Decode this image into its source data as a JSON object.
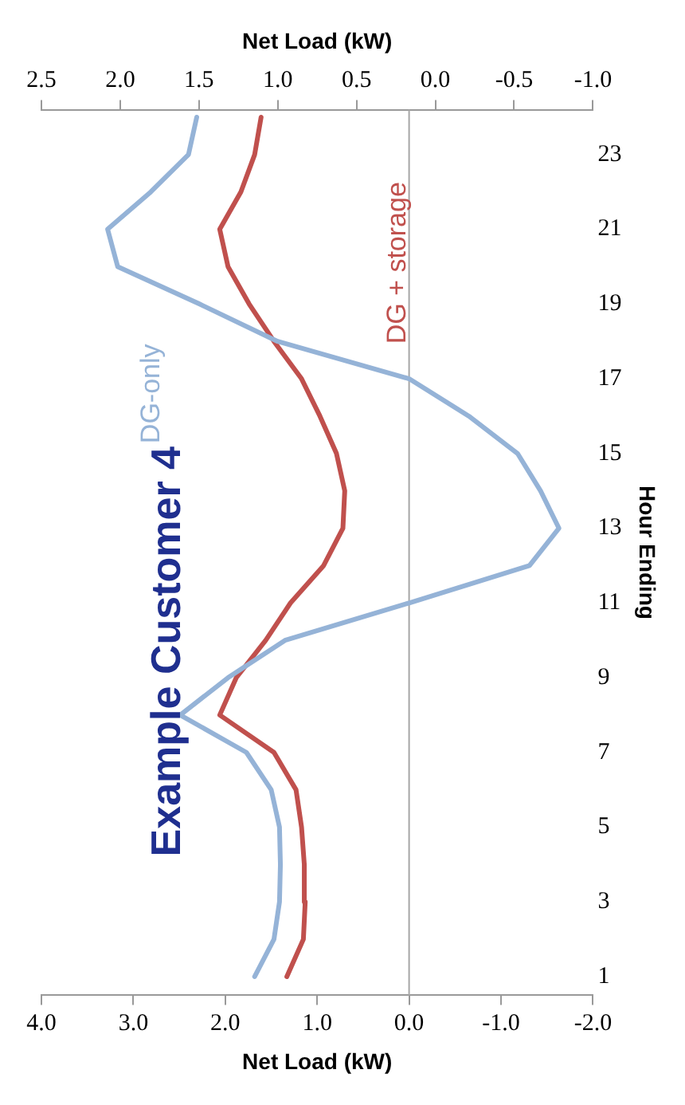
{
  "chart_data": {
    "type": "line",
    "title": "Example Customer 4",
    "ylabel": "Hour Ending",
    "xlabel": "Net Load (kW)",
    "x2label": "Net Load (kW)",
    "series": [
      {
        "name": "DG-only",
        "color": "#95b3d7",
        "x": [
          1.68,
          1.47,
          1.41,
          1.4,
          1.41,
          1.5,
          1.77,
          2.49,
          1.97,
          1.35,
          0.0,
          -1.31,
          -1.63,
          -1.43,
          -1.18,
          -0.65,
          0.0,
          1.43,
          2.28,
          3.17,
          3.28,
          2.81,
          2.4,
          2.31
        ],
        "values": [
          1,
          2,
          3,
          4,
          5,
          6,
          7,
          8,
          9,
          10,
          11,
          12,
          13,
          14,
          15,
          16,
          17,
          18,
          19,
          20,
          21,
          22,
          23,
          24
        ]
      },
      {
        "name": "DG + storage",
        "color": "#c0504d",
        "x": [
          1.33,
          1.15,
          1.13,
          1.14,
          1.17,
          1.23,
          1.47,
          2.06,
          1.88,
          1.56,
          1.29,
          0.93,
          0.72,
          0.7,
          0.79,
          0.97,
          1.17,
          1.47,
          1.74,
          1.97,
          2.06,
          1.83,
          1.68,
          1.61
        ],
        "values": [
          1,
          2,
          3,
          4,
          5,
          6,
          7,
          8,
          9,
          10,
          11,
          12,
          13,
          14,
          15,
          16,
          17,
          18,
          19,
          20,
          21,
          22,
          23,
          24
        ]
      }
    ],
    "ylim": [
      0.5,
      24.2
    ],
    "yticks": [
      1,
      3,
      5,
      7,
      9,
      11,
      13,
      15,
      17,
      19,
      21,
      23
    ],
    "xlim": [
      4,
      -2
    ],
    "xticks": [
      {
        "value": 4,
        "label": "4.0"
      },
      {
        "value": 3,
        "label": "3.0"
      },
      {
        "value": 2,
        "label": "2.0"
      },
      {
        "value": 1,
        "label": "1.0"
      },
      {
        "value": 0,
        "label": "0.0"
      },
      {
        "value": -1,
        "label": "-1.0"
      },
      {
        "value": -2,
        "label": "-2.0"
      }
    ],
    "x2lim": [
      2.5,
      -1
    ],
    "x2ticks": [
      {
        "value": 2.5,
        "label": "2.5"
      },
      {
        "value": 2,
        "label": "2.0"
      },
      {
        "value": 1.5,
        "label": "1.5"
      },
      {
        "value": 1,
        "label": "1.0"
      },
      {
        "value": 0.5,
        "label": "0.5"
      },
      {
        "value": 0,
        "label": "0.0"
      },
      {
        "value": -0.5,
        "label": "-0.5"
      },
      {
        "value": -1,
        "label": "-1.0"
      }
    ],
    "ref_lines": [
      {
        "axis": "x",
        "value": 0,
        "color": "#a6a6a6"
      }
    ],
    "grid": false,
    "legend": false,
    "marker": "none",
    "line_style": "solid"
  }
}
